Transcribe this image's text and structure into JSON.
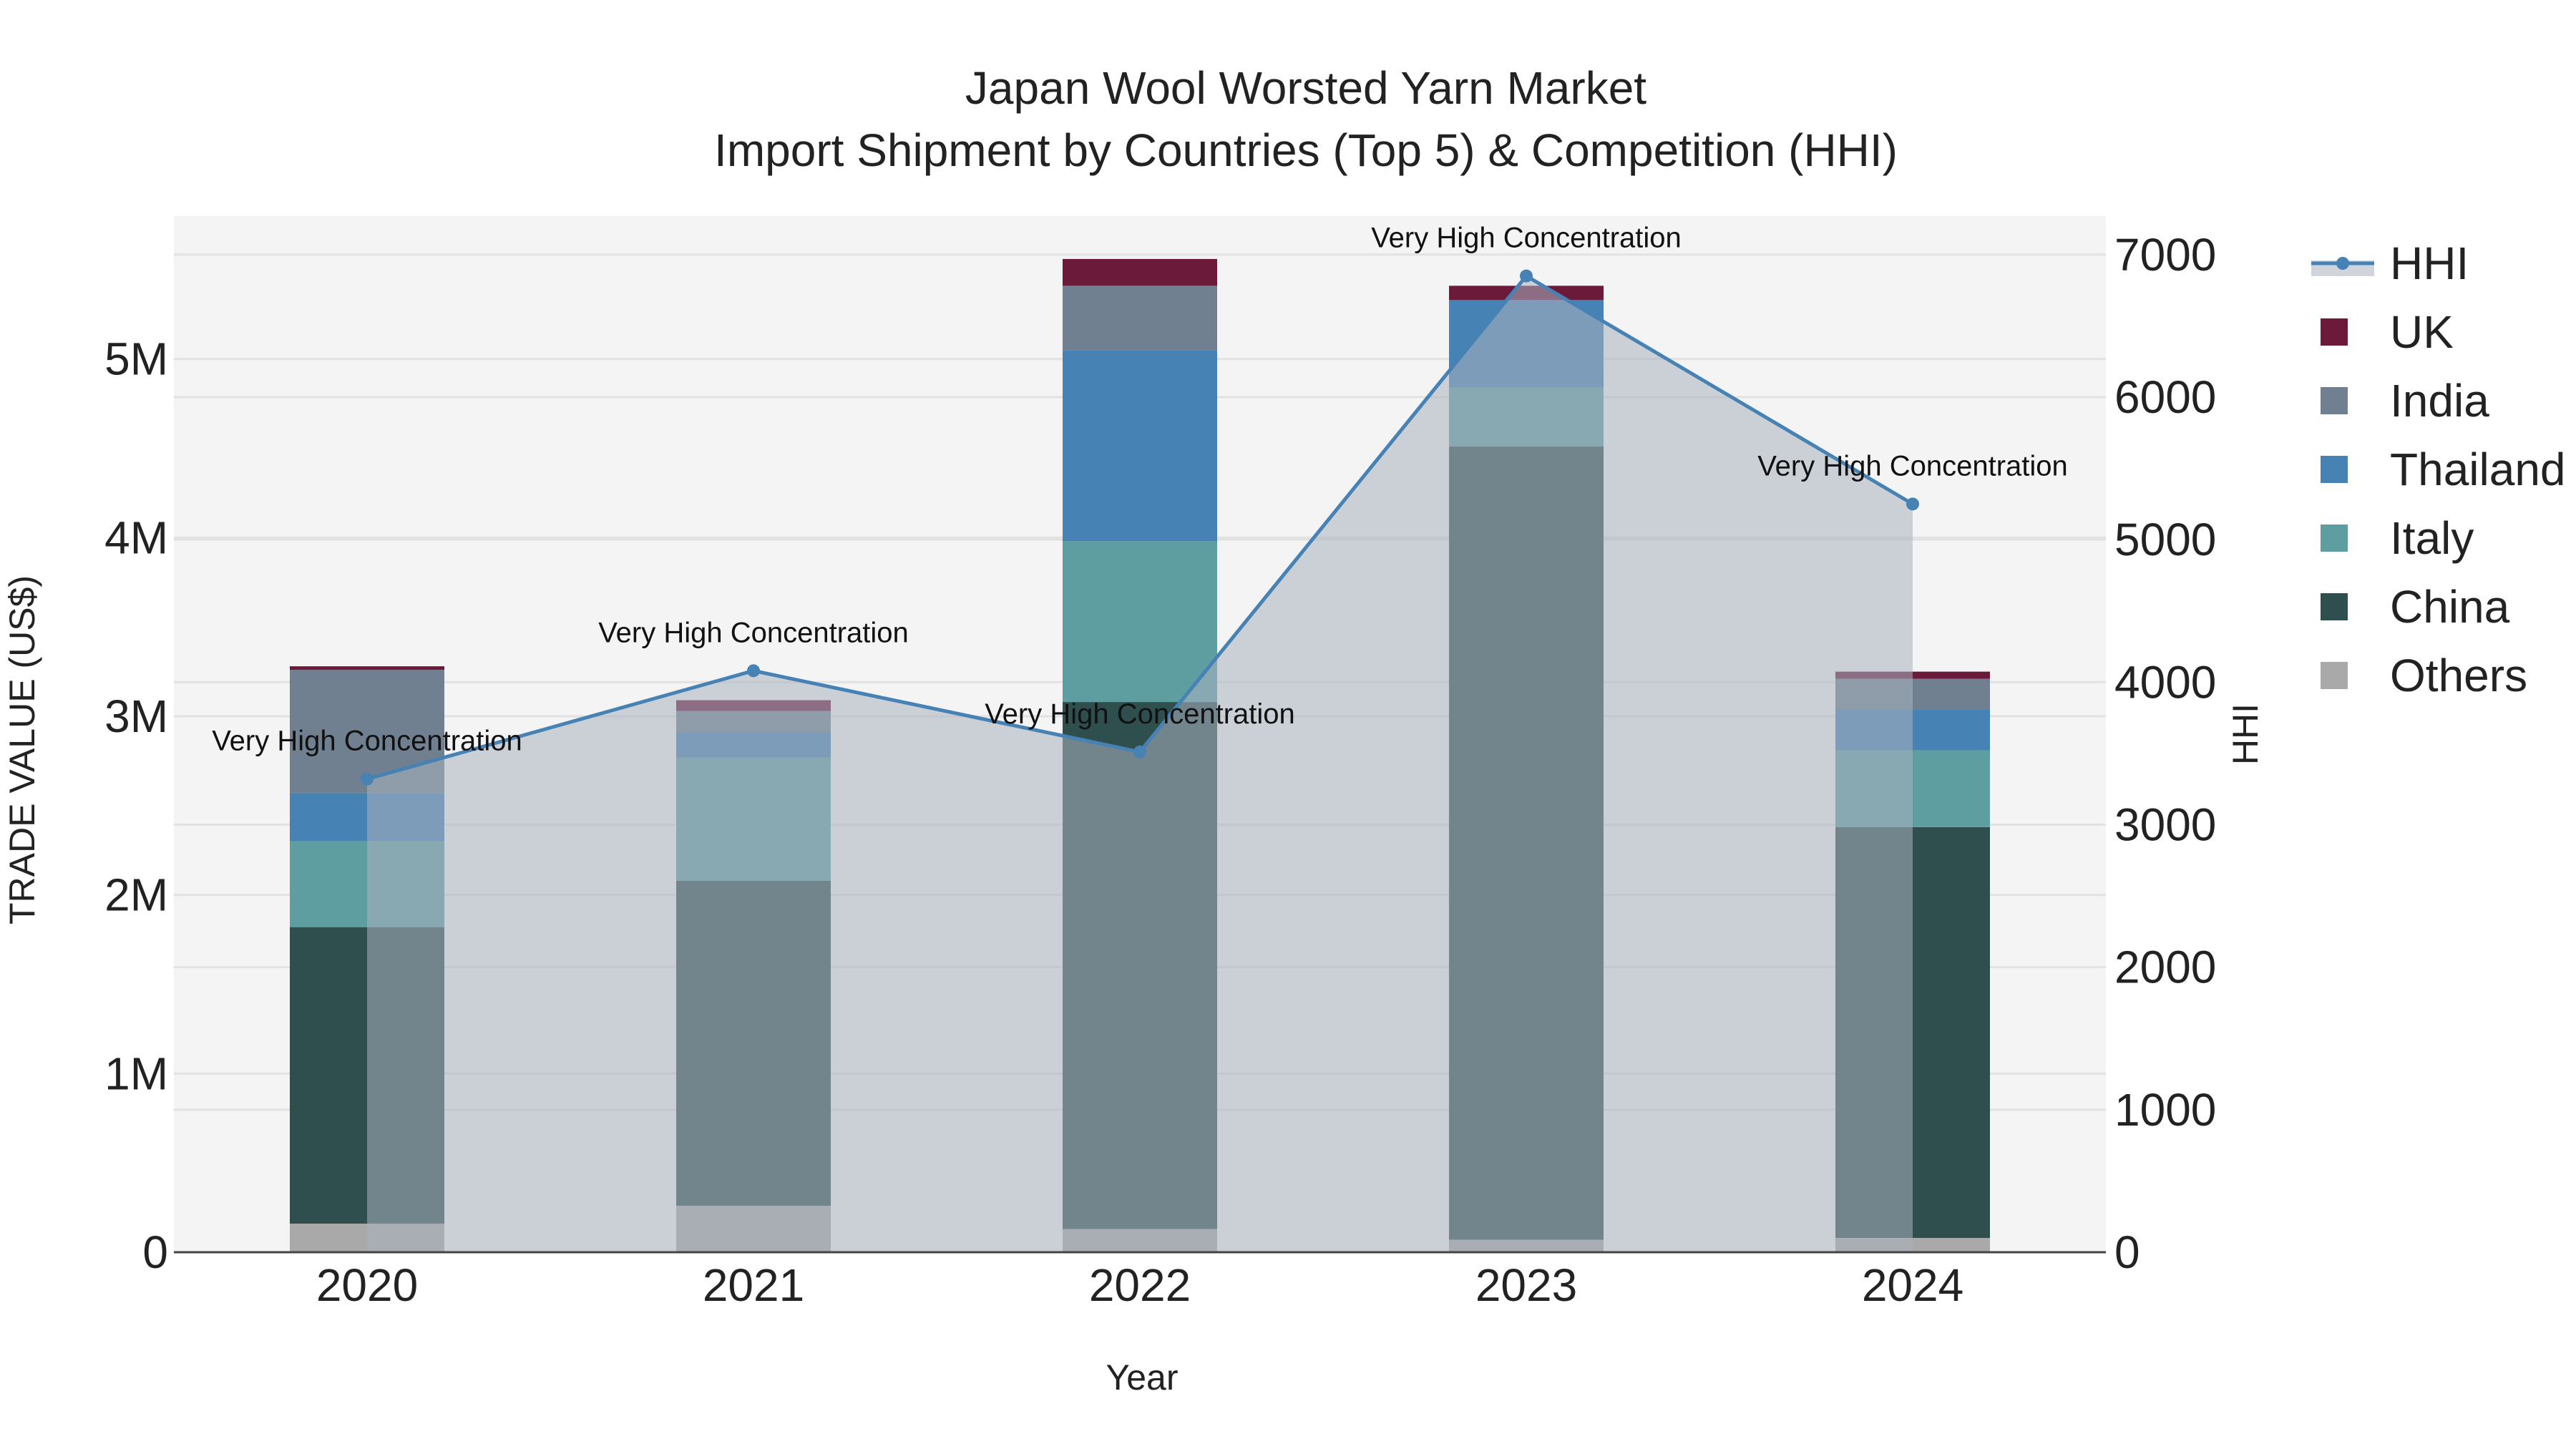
{
  "chart_data": {
    "type": "bar",
    "title_line1": "Japan Wool Worsted Yarn Market",
    "title_line2": "Import Shipment by Countries (Top 5) & Competition (HHI)",
    "xlabel": "Year",
    "ylabel": "TRADE VALUE (US$)",
    "y2label": "HHI",
    "categories": [
      "2020",
      "2021",
      "2022",
      "2023",
      "2024"
    ],
    "ylim": [
      0,
      5800000
    ],
    "y2lim": [
      0,
      7270
    ],
    "yticks": [
      {
        "value": 0,
        "label": "0"
      },
      {
        "value": 1000000,
        "label": "1M"
      },
      {
        "value": 2000000,
        "label": "2M"
      },
      {
        "value": 3000000,
        "label": "3M"
      },
      {
        "value": 4000000,
        "label": "4M"
      },
      {
        "value": 5000000,
        "label": "5M"
      }
    ],
    "y2ticks": [
      {
        "value": 0,
        "label": "0"
      },
      {
        "value": 1000,
        "label": "1000"
      },
      {
        "value": 2000,
        "label": "2000"
      },
      {
        "value": 3000,
        "label": "3000"
      },
      {
        "value": 4000,
        "label": "4000"
      },
      {
        "value": 5000,
        "label": "5000"
      },
      {
        "value": 6000,
        "label": "6000"
      },
      {
        "value": 7000,
        "label": "7000"
      }
    ],
    "series": [
      {
        "name": "Others",
        "color": "#a9a9a9",
        "values": [
          160000,
          260000,
          130000,
          70000,
          80000
        ]
      },
      {
        "name": "China",
        "color": "#2f4f4f",
        "values": [
          1660000,
          1820000,
          2950000,
          4440000,
          2300000
        ]
      },
      {
        "name": "Italy",
        "color": "#5f9ea0",
        "values": [
          480000,
          690000,
          900000,
          330000,
          430000
        ]
      },
      {
        "name": "Thailand",
        "color": "#4682b4",
        "values": [
          270000,
          140000,
          1070000,
          490000,
          230000
        ]
      },
      {
        "name": "India",
        "color": "#708090",
        "values": [
          690000,
          120000,
          360000,
          0,
          170000
        ]
      },
      {
        "name": "UK",
        "color": "#6b1a3a",
        "values": [
          20000,
          60000,
          150000,
          80000,
          40000
        ]
      }
    ],
    "hhi": {
      "name": "HHI",
      "color": "#4682b4",
      "values": [
        3320,
        4080,
        3510,
        6850,
        5250
      ],
      "annotations": [
        "Very High Concentration",
        "Very High Concentration",
        "Very High Concentration",
        "Very High Concentration",
        "Very High Concentration"
      ]
    },
    "legend": [
      "HHI",
      "UK",
      "India",
      "Thailand",
      "Italy",
      "China",
      "Others"
    ],
    "legend_position": "right"
  }
}
